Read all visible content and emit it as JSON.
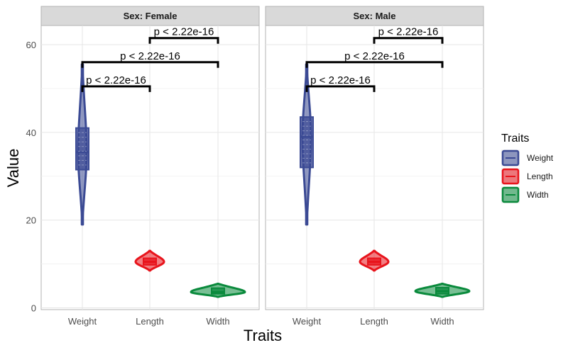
{
  "chart_data": {
    "type": "violin",
    "xlabel": "Traits",
    "ylabel": "Value",
    "ylim": [
      0,
      65
    ],
    "y_ticks": [
      0,
      20,
      40,
      60
    ],
    "categories": [
      "Weight",
      "Length",
      "Width"
    ],
    "grid": true,
    "legend": {
      "title": "Traits",
      "position": "right",
      "entries": [
        "Weight",
        "Length",
        "Width"
      ]
    },
    "colors": {
      "Weight": "#3b4a94",
      "Length": "#e8141c",
      "Width": "#0a8a3c"
    },
    "panels": [
      {
        "strip": "Sex: Female",
        "distributions": [
          {
            "trait": "Weight",
            "min": 19,
            "q1": 31.5,
            "median": 35.5,
            "q3": 41,
            "max": 55.5
          },
          {
            "trait": "Length",
            "min": 8.5,
            "q1": 9.8,
            "median": 10.5,
            "q3": 11.3,
            "max": 13
          },
          {
            "trait": "Width",
            "min": 2.5,
            "q1": 3.2,
            "median": 3.6,
            "q3": 4.5,
            "max": 5.5
          }
        ],
        "comparisons": [
          {
            "from": "Weight",
            "to": "Length",
            "y": 50.5,
            "label": "p < 2.22e-16"
          },
          {
            "from": "Weight",
            "to": "Width",
            "y": 56,
            "label": "p < 2.22e-16"
          },
          {
            "from": "Length",
            "to": "Width",
            "y": 61.5,
            "label": "p < 2.22e-16"
          }
        ]
      },
      {
        "strip": "Sex: Male",
        "distributions": [
          {
            "trait": "Weight",
            "min": 19,
            "q1": 32,
            "median": 39,
            "q3": 43.5,
            "max": 55.5
          },
          {
            "trait": "Length",
            "min": 8.5,
            "q1": 9.8,
            "median": 10.5,
            "q3": 11.3,
            "max": 13
          },
          {
            "trait": "Width",
            "min": 2.5,
            "q1": 3.2,
            "median": 3.8,
            "q3": 4.6,
            "max": 5.5
          }
        ],
        "comparisons": [
          {
            "from": "Weight",
            "to": "Length",
            "y": 50.5,
            "label": "p < 2.22e-16"
          },
          {
            "from": "Weight",
            "to": "Width",
            "y": 56,
            "label": "p < 2.22e-16"
          },
          {
            "from": "Length",
            "to": "Width",
            "y": 61.5,
            "label": "p < 2.22e-16"
          }
        ]
      }
    ]
  }
}
